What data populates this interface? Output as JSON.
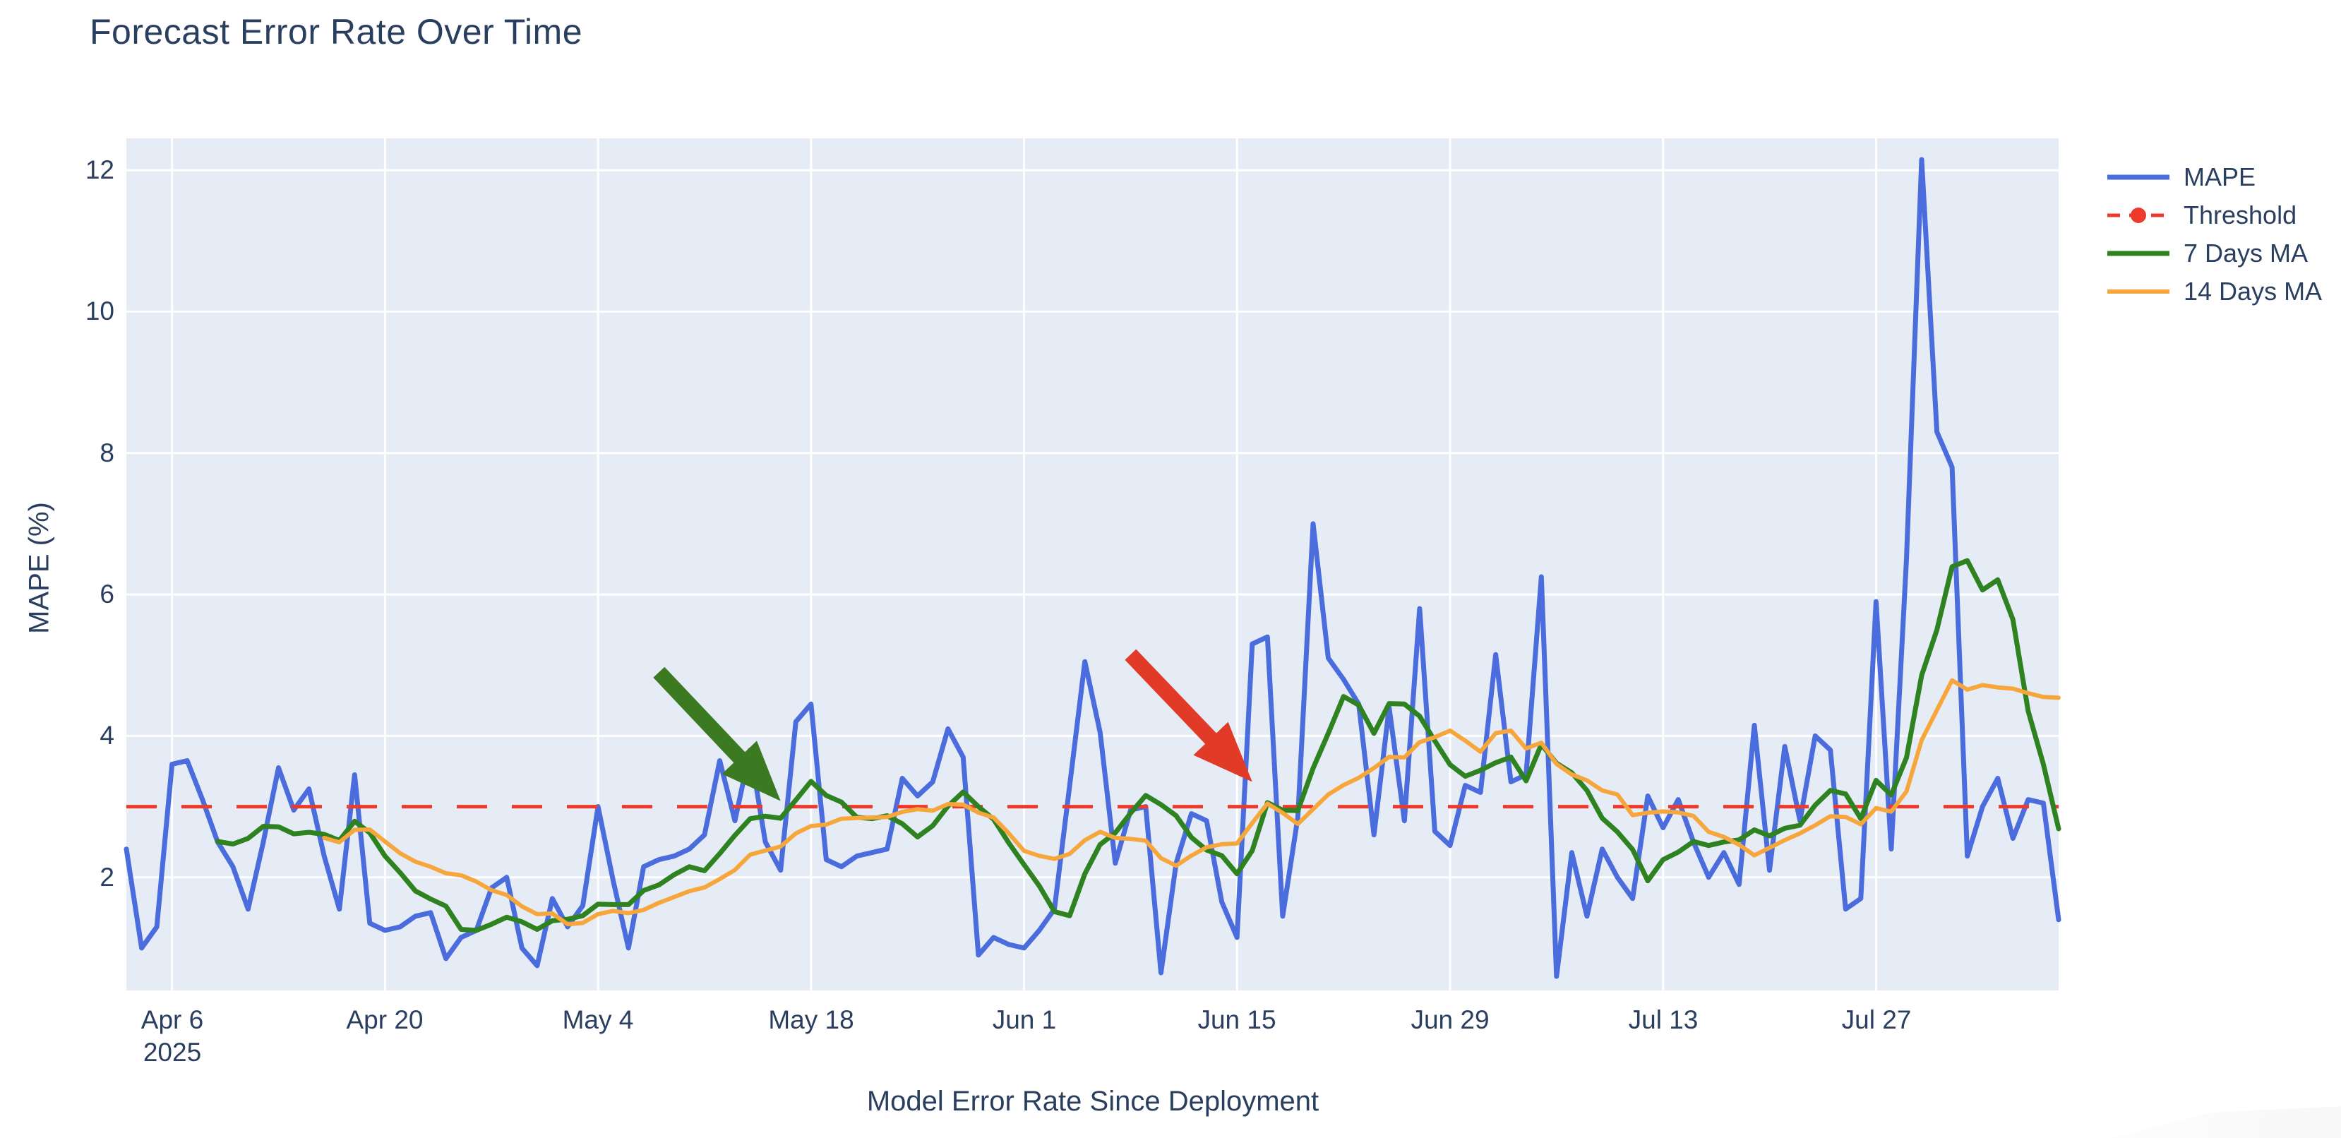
{
  "title": "Forecast Error Rate Over Time",
  "axes": {
    "y_title": "MAPE (%)",
    "x_title": "Model Error Rate Since Deployment",
    "y_tick_labels": [
      "12",
      "10",
      "8",
      "6",
      "4",
      "2"
    ],
    "x_tick_labels": [
      "Apr 6",
      "Apr 20",
      "May 4",
      "May 18",
      "Jun 1",
      "Jun 15",
      "Jun 29",
      "Jul 13",
      "Jul 27"
    ],
    "x_tick_year": "2025"
  },
  "legend": {
    "items": [
      {
        "label": "MAPE"
      },
      {
        "label": "Threshold"
      },
      {
        "label": "7 Days MA"
      },
      {
        "label": "14 Days MA"
      }
    ]
  },
  "colors": {
    "text": "#2a3f5f",
    "plot_bg": "#e5ecf6",
    "grid": "#ffffff",
    "mape": "#4a6cdc",
    "threshold": "#ee392b",
    "ma7": "#2e8220",
    "ma14": "#f7a63c",
    "arrow_green": "#3b7a21",
    "arrow_red": "#e13b27"
  },
  "chart_data": {
    "type": "line",
    "title": "Forecast Error Rate Over Time",
    "xlabel": "Model Error Rate Since Deployment",
    "ylabel": "MAPE (%)",
    "x_start_date": "2025-04-03",
    "x_end_date": "2025-08-08",
    "frequency": "daily",
    "y_range": [
      0.4,
      12.45
    ],
    "y_ticks": [
      2,
      4,
      6,
      8,
      10,
      12
    ],
    "x_tick_indices": [
      3,
      17,
      31,
      45,
      59,
      73,
      87,
      101,
      115
    ],
    "x_tick_dates": [
      "2025-04-06",
      "2025-04-20",
      "2025-05-04",
      "2025-05-18",
      "2025-06-01",
      "2025-06-15",
      "2025-06-29",
      "2025-07-13",
      "2025-07-27"
    ],
    "grid": true,
    "legend_position": "right-top-outside",
    "threshold_value": 3.0,
    "series": [
      {
        "name": "MAPE",
        "type": "line",
        "color": "#4a6cdc",
        "width": 7,
        "values": [
          2.4,
          1.0,
          1.3,
          3.6,
          3.65,
          3.1,
          2.5,
          2.15,
          1.55,
          2.5,
          3.55,
          2.95,
          3.25,
          2.3,
          1.55,
          3.45,
          1.35,
          1.25,
          1.3,
          1.45,
          1.5,
          0.85,
          1.15,
          1.25,
          1.85,
          2.0,
          1.0,
          0.75,
          1.7,
          1.3,
          1.6,
          3.0,
          1.95,
          1.0,
          2.15,
          2.25,
          2.3,
          2.4,
          2.6,
          3.65,
          2.8,
          3.8,
          2.5,
          2.1,
          4.2,
          4.45,
          2.25,
          2.15,
          2.3,
          2.35,
          2.4,
          3.4,
          3.15,
          3.35,
          4.1,
          3.7,
          0.9,
          1.15,
          1.05,
          1.0,
          1.25,
          1.55,
          3.3,
          5.05,
          4.05,
          2.2,
          2.95,
          3.0,
          0.65,
          2.2,
          2.9,
          2.8,
          1.65,
          1.15,
          5.3,
          5.4,
          1.45,
          2.85,
          7.0,
          5.1,
          4.8,
          4.45,
          2.6,
          4.4,
          2.8,
          5.8,
          2.65,
          2.45,
          3.3,
          3.2,
          5.15,
          3.35,
          3.45,
          6.25,
          0.6,
          2.35,
          1.45,
          2.4,
          2.0,
          1.7,
          3.15,
          2.7,
          3.1,
          2.5,
          2.0,
          2.35,
          1.9,
          4.15,
          2.1,
          3.85,
          2.8,
          4.0,
          3.8,
          1.55,
          1.7,
          5.9,
          2.4,
          6.5,
          12.15,
          8.3,
          7.8,
          2.3,
          3.0,
          3.4,
          2.55,
          3.1,
          3.05,
          1.4
        ]
      },
      {
        "name": "Threshold",
        "type": "hline",
        "color": "#ee392b",
        "width": 5,
        "dash": [
          43,
          35
        ],
        "value": 3.0
      },
      {
        "name": "7 Days MA",
        "type": "moving_average",
        "window": 7,
        "source": "MAPE",
        "color": "#2e8220",
        "width": 7
      },
      {
        "name": "14 Days MA",
        "type": "moving_average",
        "window": 14,
        "source": "MAPE",
        "color": "#f7a63c",
        "width": 6
      }
    ],
    "annotations": [
      {
        "type": "arrow",
        "name": "green-arrow",
        "color": "#3b7a21",
        "tail": {
          "date": "2025-05-08",
          "value": 4.9
        },
        "tip": {
          "date": "2025-05-16",
          "value": 3.08
        }
      },
      {
        "type": "arrow",
        "name": "red-arrow",
        "color": "#e13b27",
        "tail": {
          "date": "2025-06-08",
          "value": 5.15
        },
        "tip": {
          "date": "2025-06-16",
          "value": 3.35
        }
      }
    ]
  }
}
